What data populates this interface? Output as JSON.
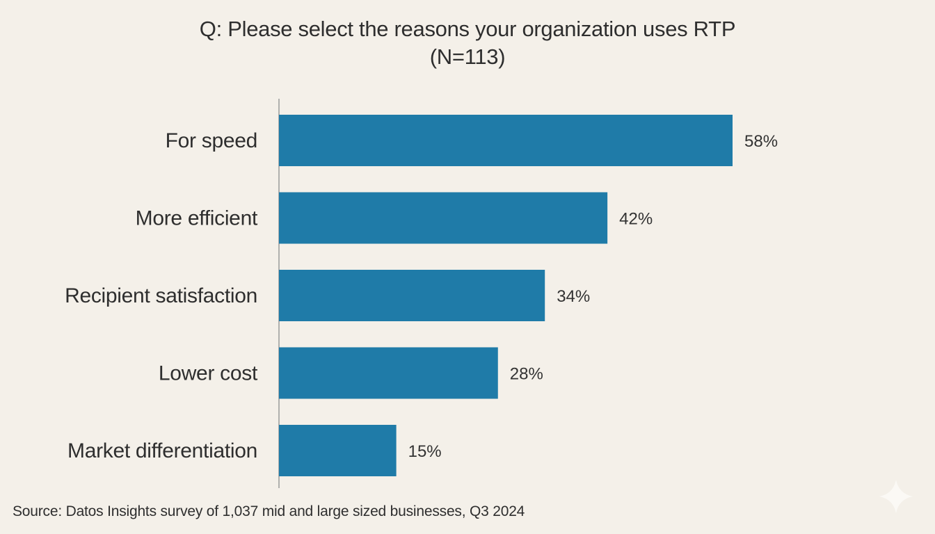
{
  "chart_data": {
    "type": "bar",
    "orientation": "horizontal",
    "title": "Q: Please select the reasons your organization uses RTP",
    "subtitle": "(N=113)",
    "categories": [
      "For speed",
      "More efficient",
      "Recipient satisfaction",
      "Lower cost",
      "Market differentiation"
    ],
    "values": [
      58,
      42,
      34,
      28,
      15
    ],
    "value_labels": [
      "58%",
      "42%",
      "34%",
      "28%",
      "15%"
    ],
    "xlabel": "",
    "ylabel": "",
    "xlim": [
      0,
      60
    ],
    "grid": false,
    "legend": "none",
    "bar_color": "#1f7ba8",
    "source": "Source: Datos Insights survey of 1,037 mid and large sized businesses, Q3 2024"
  },
  "watermark": {
    "icon": "sparkle-icon"
  }
}
